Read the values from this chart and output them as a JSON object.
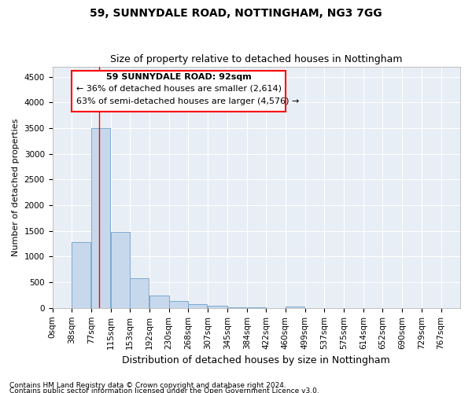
{
  "title1": "59, SUNNYDALE ROAD, NOTTINGHAM, NG3 7GG",
  "title2": "Size of property relative to detached houses in Nottingham",
  "xlabel": "Distribution of detached houses by size in Nottingham",
  "ylabel": "Number of detached properties",
  "bin_labels": [
    "0sqm",
    "38sqm",
    "77sqm",
    "115sqm",
    "153sqm",
    "192sqm",
    "230sqm",
    "268sqm",
    "307sqm",
    "345sqm",
    "384sqm",
    "422sqm",
    "460sqm",
    "499sqm",
    "537sqm",
    "575sqm",
    "614sqm",
    "652sqm",
    "690sqm",
    "729sqm",
    "767sqm"
  ],
  "bin_edges": [
    0,
    38,
    77,
    115,
    153,
    192,
    230,
    268,
    307,
    345,
    384,
    422,
    460,
    499,
    537,
    575,
    614,
    652,
    690,
    729,
    767
  ],
  "bar_heights": [
    0,
    1280,
    3500,
    1480,
    575,
    240,
    130,
    75,
    50,
    8,
    5,
    3,
    25,
    4,
    0,
    0,
    0,
    0,
    0,
    0,
    0
  ],
  "bar_color": "#c8d8ec",
  "bar_edge_color": "#7aaad0",
  "red_line_x": 92,
  "annotation_line1": "59 SUNNYDALE ROAD: 92sqm",
  "annotation_line2": "← 36% of detached houses are smaller (2,614)",
  "annotation_line3": "63% of semi-detached houses are larger (4,576) →",
  "ylim": [
    0,
    4700
  ],
  "yticks": [
    0,
    500,
    1000,
    1500,
    2000,
    2500,
    3000,
    3500,
    4000,
    4500
  ],
  "bg_color": "#e8eef5",
  "footer1": "Contains HM Land Registry data © Crown copyright and database right 2024.",
  "footer2": "Contains public sector information licensed under the Open Government Licence v3.0.",
  "title1_fontsize": 10,
  "title2_fontsize": 9,
  "xlabel_fontsize": 9,
  "ylabel_fontsize": 8,
  "tick_fontsize": 7.5,
  "annotation_fontsize": 8,
  "footer_fontsize": 6.5
}
